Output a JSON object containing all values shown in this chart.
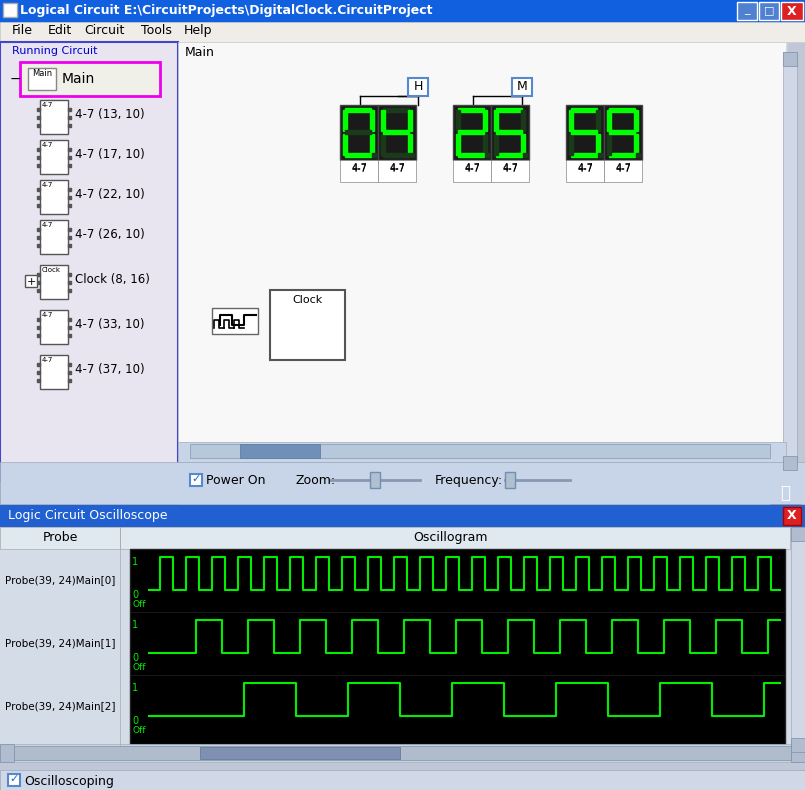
{
  "title_bar": "Logical Circuit E:\\CircuitProjects\\DigitalClock.CircuitProject",
  "menu_items": [
    "File",
    "Edit",
    "Circuit",
    "Tools",
    "Help"
  ],
  "left_panel_title": "Running Circuit",
  "left_panel_items": [
    "Main",
    "4-7 (13, 10)",
    "4-7 (17, 10)",
    "4-7 (22, 10)",
    "4-7 (26, 10)",
    "Clock (8, 16)",
    "4-7 (33, 10)",
    "4-7 (37, 10)"
  ],
  "status_bar": "Clock(8, 16)",
  "main_area_label": "Main",
  "osc_title": "Logic Circuit Oscilloscope",
  "osc_probes": [
    "Probe(39, 24)Main[0]",
    "Probe(39, 24)Main[1]",
    "Probe(39, 24)Main[2]"
  ],
  "osc_col_probe": "Probe",
  "osc_col_osc": "Oscillogram",
  "osc_label": "Oscilloscoping",
  "title_bar_color": "#1060e0",
  "title_bar_text_color": "#ffffff",
  "menu_bar_bg": "#f0ece8",
  "left_panel_bg": "#e8e4f0",
  "left_panel_border": "#4444cc",
  "main_area_bg": "#f8f8f8",
  "osc_title_color": "#2060d0",
  "osc_bg": "#000000",
  "osc_signal_color": "#00ee00",
  "osc_panel_bg": "#d0d8e8",
  "osc_header_bg": "#e0e8f0",
  "digit_bg": "#1a1a1a",
  "digit_on_color": "#00ff00",
  "digit_off_color": "#1a3a1a",
  "seven_seg_display": [
    "0",
    "4",
    "2",
    "5",
    "9"
  ],
  "bottom_bar_bg": "#c8d4e8",
  "scrollbar_color": "#a0b0c8",
  "window_bg": "#c0c8d8"
}
